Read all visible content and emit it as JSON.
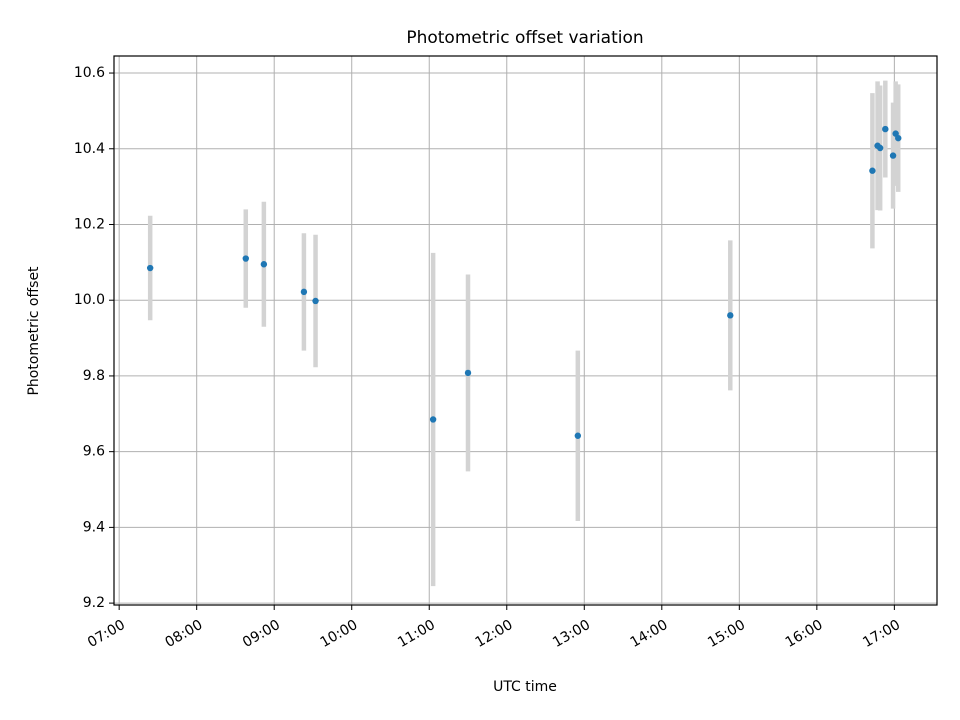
{
  "chart_data": {
    "type": "scatter",
    "title": "Photometric offset variation",
    "xlabel": "UTC time",
    "ylabel": "Photometric offset",
    "x_tick_labels": [
      "07:00",
      "08:00",
      "09:00",
      "10:00",
      "11:00",
      "12:00",
      "13:00",
      "14:00",
      "15:00",
      "16:00",
      "17:00"
    ],
    "y_tick_labels": [
      "9.2",
      "9.4",
      "9.6",
      "9.8",
      "10.0",
      "10.2",
      "10.4",
      "10.6"
    ],
    "xlim": [
      "06:56",
      "17:33"
    ],
    "ylim": [
      9.195,
      10.645
    ],
    "grid": true,
    "colors": {
      "points": "#1f77b4",
      "errorbars": "#d3d3d3",
      "grid": "#b0b0b0"
    },
    "series": [
      {
        "points": [
          {
            "t": "07:24",
            "y": 10.085,
            "err": 0.138
          },
          {
            "t": "08:38",
            "y": 10.11,
            "err": 0.13
          },
          {
            "t": "08:52",
            "y": 10.095,
            "err": 0.165
          },
          {
            "t": "09:23",
            "y": 10.022,
            "err": 0.155
          },
          {
            "t": "09:32",
            "y": 9.998,
            "err": 0.175
          },
          {
            "t": "11:03",
            "y": 9.685,
            "err": 0.44
          },
          {
            "t": "11:30",
            "y": 9.808,
            "err": 0.26
          },
          {
            "t": "12:55",
            "y": 9.642,
            "err": 0.225
          },
          {
            "t": "14:53",
            "y": 9.96,
            "err": 0.198
          },
          {
            "t": "16:43",
            "y": 10.342,
            "err": 0.205
          },
          {
            "t": "16:47",
            "y": 10.408,
            "err": 0.17
          },
          {
            "t": "16:49",
            "y": 10.402,
            "err": 0.165
          },
          {
            "t": "16:53",
            "y": 10.452,
            "err": 0.128
          },
          {
            "t": "16:59",
            "y": 10.382,
            "err": 0.14
          },
          {
            "t": "17:01",
            "y": 10.44,
            "err": 0.138
          },
          {
            "t": "17:03",
            "y": 10.428,
            "err": 0.142
          }
        ]
      }
    ]
  }
}
